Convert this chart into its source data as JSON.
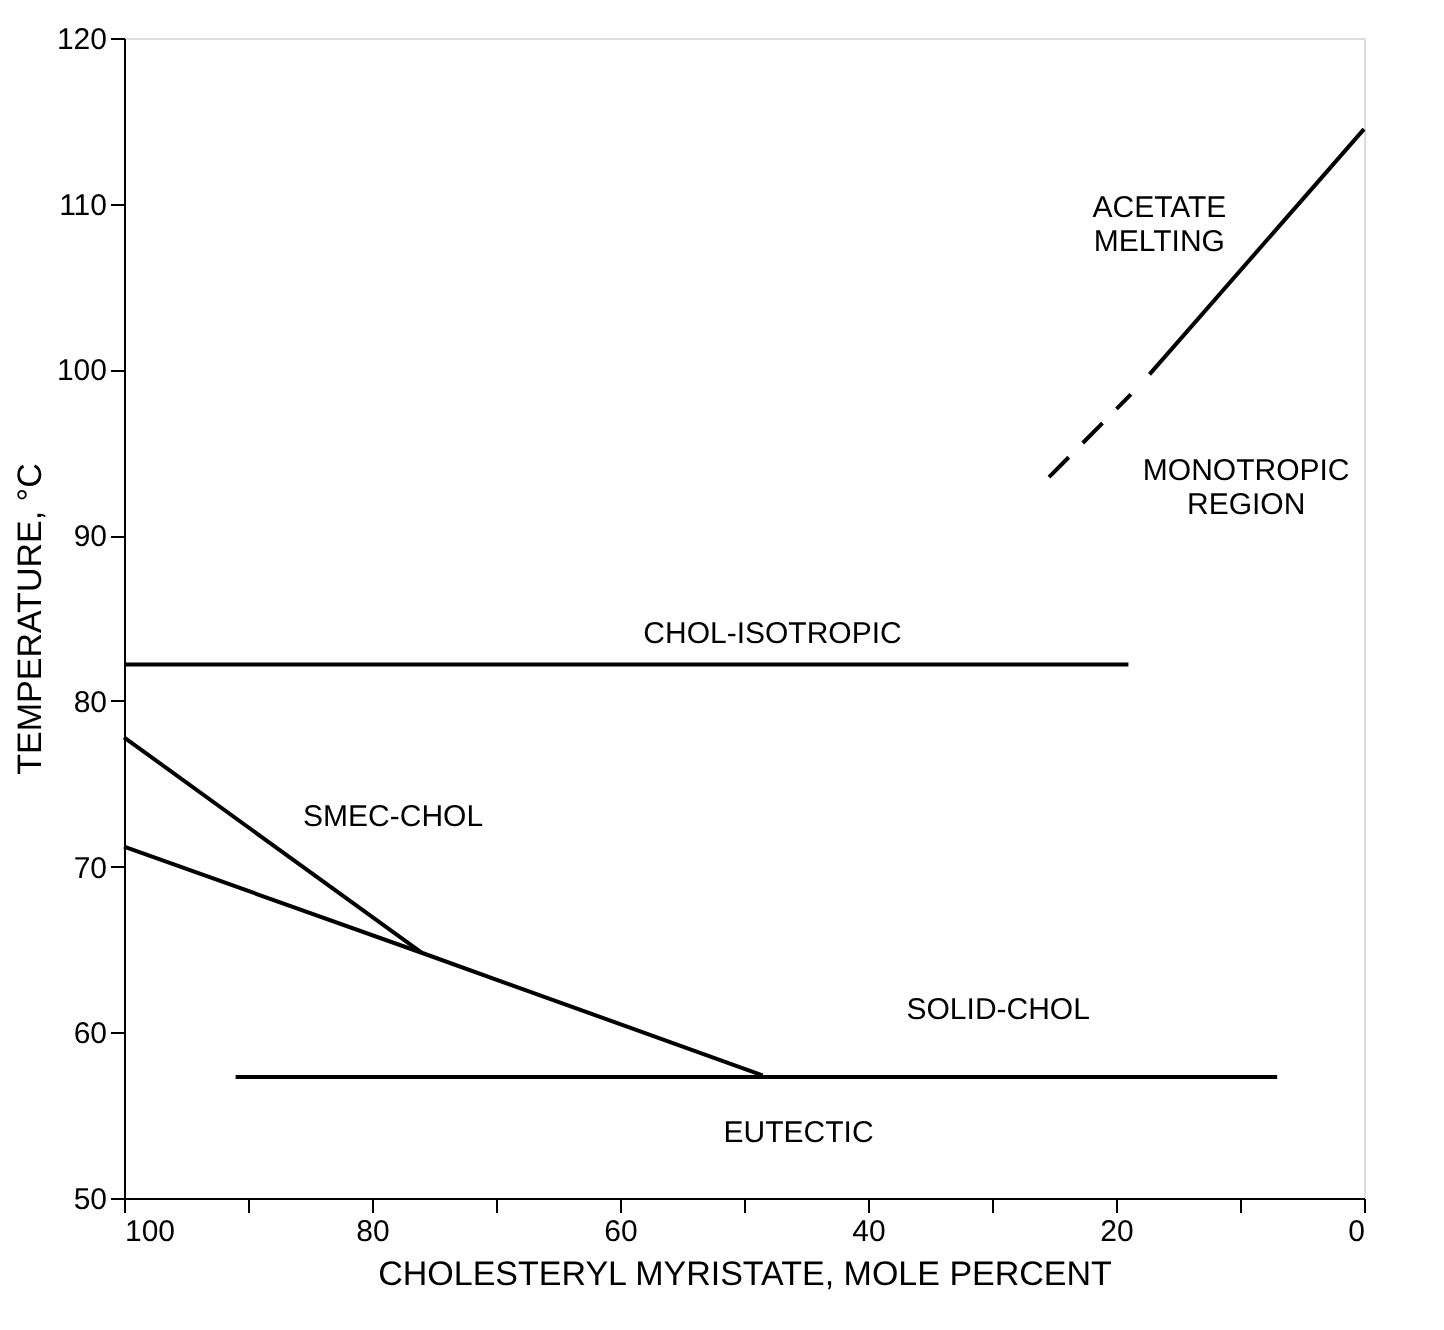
{
  "chart_data": {
    "type": "line",
    "xlabel": "CHOLESTERYL MYRISTATE, MOLE PERCENT",
    "ylabel": "TEMPERATURE, °C",
    "xlim": [
      100,
      0
    ],
    "ylim": [
      50,
      120
    ],
    "xticks": [
      100,
      {
        "value": 90,
        "label": null
      },
      80,
      {
        "value": 70,
        "label": null
      },
      60,
      {
        "value": 50,
        "label": null
      },
      40,
      {
        "value": 30,
        "label": null
      },
      20,
      {
        "value": 10,
        "label": null
      },
      0
    ],
    "yticks": [
      50,
      60,
      70,
      80,
      90,
      100,
      110,
      120
    ],
    "grid": false,
    "marker": "none",
    "series": [
      {
        "color": "#000000",
        "line_style": "solid",
        "x": [
          100,
          19
        ],
        "values": [
          82.2,
          82.2
        ]
      },
      {
        "color": "#000000",
        "line_style": "solid",
        "x": [
          100,
          76
        ],
        "values": [
          77.8,
          64.8
        ]
      },
      {
        "color": "#000000",
        "line_style": "solid",
        "x": [
          100,
          76,
          48.5
        ],
        "values": [
          71.2,
          64.8,
          57.4
        ]
      },
      {
        "color": "#000000",
        "line_style": "solid",
        "x": [
          91,
          7
        ],
        "values": [
          57.3,
          57.3
        ]
      },
      {
        "color": "#000000",
        "line_style": "solid",
        "x": [
          17.3,
          0
        ],
        "values": [
          99.7,
          114.5
        ]
      },
      {
        "color": "#000000",
        "line_style": "dashed",
        "x": [
          25.4,
          18.8
        ],
        "values": [
          93.5,
          98.5
        ]
      }
    ],
    "annotations": [
      "CHOL-ISOTROPIC",
      "SMEC-CHOL",
      "SOLID-CHOL",
      "EUTECTIC",
      "ACETATE\nMELTING",
      "MONOTROPIC\nREGION"
    ]
  }
}
